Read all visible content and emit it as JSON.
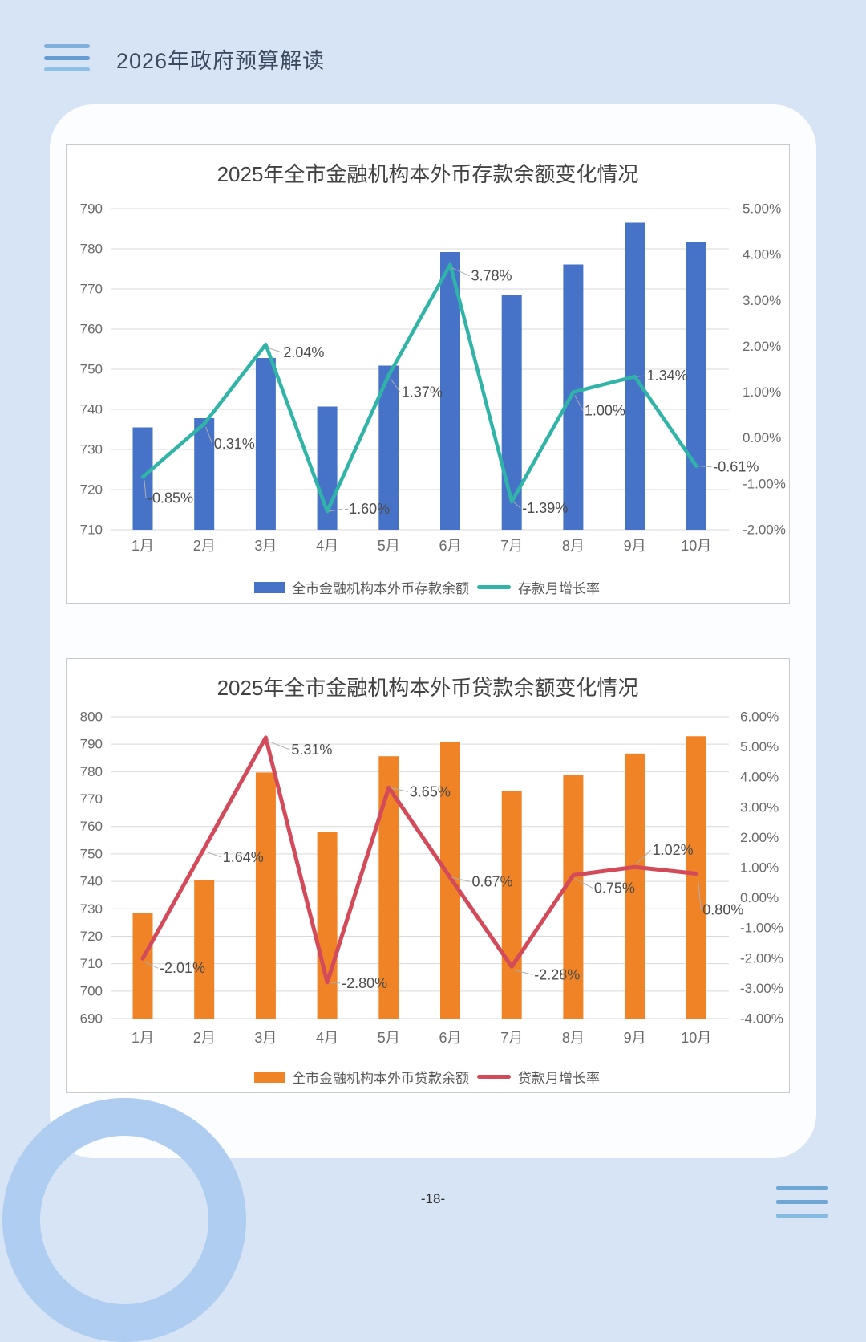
{
  "page": {
    "header_title": "2026年政府预算解读",
    "footer_page_number": "-18-"
  },
  "colors": {
    "page_bg": "#d7e4f5",
    "card_bg": "#fcfdfe",
    "deposit_bar": "#4673c8",
    "deposit_line": "#30b4a7",
    "loan_bar": "#ef8326",
    "loan_line": "#d34b5a",
    "gridline": "#d9d9d9",
    "tick_label": "#6a6a6a",
    "data_label": "#4d4d4d",
    "ring": "#aecdf0"
  },
  "chart_data": [
    {
      "type": "bar",
      "title": "2025年全市金融机构本外币存款余额变化情况",
      "categories": [
        "1月",
        "2月",
        "3月",
        "4月",
        "5月",
        "6月",
        "7月",
        "8月",
        "9月",
        "10月"
      ],
      "series": [
        {
          "name": "全市金融机构本外币存款余额",
          "type": "bar",
          "axis": "left",
          "color": "#4673c8",
          "values": [
            735.5,
            737.8,
            752.8,
            740.7,
            750.9,
            779.2,
            768.4,
            776.1,
            786.5,
            781.7
          ]
        },
        {
          "name": "存款月增长率",
          "type": "line",
          "axis": "right",
          "color": "#30b4a7",
          "values": [
            -0.85,
            0.31,
            2.04,
            -1.6,
            1.37,
            3.78,
            -1.39,
            1.0,
            1.34,
            -0.61
          ],
          "labels": [
            "-0.85%",
            "0.31%",
            "2.04%",
            "-1.60%",
            "1.37%",
            "3.78%",
            "-1.39%",
            "1.00%",
            "1.34%",
            "-0.61%"
          ]
        }
      ],
      "left_axis": {
        "min": 710,
        "max": 790,
        "step": 10,
        "ticks": [
          "790",
          "780",
          "770",
          "760",
          "750",
          "740",
          "730",
          "720",
          "710"
        ]
      },
      "right_axis": {
        "min": -2,
        "max": 5,
        "step": 1,
        "ticks": [
          "5.00%",
          "4.00%",
          "3.00%",
          "2.00%",
          "1.00%",
          "0.00%",
          "-1.00%",
          "-2.00%"
        ]
      },
      "grid": true,
      "legend_position": "bottom"
    },
    {
      "type": "bar",
      "title": "2025年全市金融机构本外币贷款余额变化情况",
      "categories": [
        "1月",
        "2月",
        "3月",
        "4月",
        "5月",
        "6月",
        "7月",
        "8月",
        "9月",
        "10月"
      ],
      "series": [
        {
          "name": "全市金融机构本外币贷款余额",
          "type": "bar",
          "axis": "left",
          "color": "#ef8326",
          "values": [
            728.5,
            740.4,
            779.7,
            757.9,
            785.6,
            790.9,
            772.9,
            778.7,
            786.6,
            792.9
          ]
        },
        {
          "name": "贷款月增长率",
          "type": "line",
          "axis": "right",
          "color": "#d34b5a",
          "values": [
            -2.01,
            1.64,
            5.31,
            -2.8,
            3.65,
            0.67,
            -2.28,
            0.75,
            1.02,
            0.8
          ],
          "labels": [
            "-2.01%",
            "1.64%",
            "5.31%",
            "-2.80%",
            "3.65%",
            "0.67%",
            "-2.28%",
            "0.75%",
            "1.02%",
            "0.80%"
          ]
        }
      ],
      "left_axis": {
        "min": 690,
        "max": 800,
        "step": 10,
        "ticks": [
          "800",
          "790",
          "780",
          "770",
          "760",
          "750",
          "740",
          "730",
          "720",
          "710",
          "700",
          "690"
        ]
      },
      "right_axis": {
        "min": -4,
        "max": 6,
        "step": 1,
        "ticks": [
          "6.00%",
          "5.00%",
          "4.00%",
          "3.00%",
          "2.00%",
          "1.00%",
          "0.00%",
          "-1.00%",
          "-2.00%",
          "-3.00%",
          "-4.00%"
        ]
      },
      "grid": true,
      "legend_position": "bottom"
    }
  ]
}
